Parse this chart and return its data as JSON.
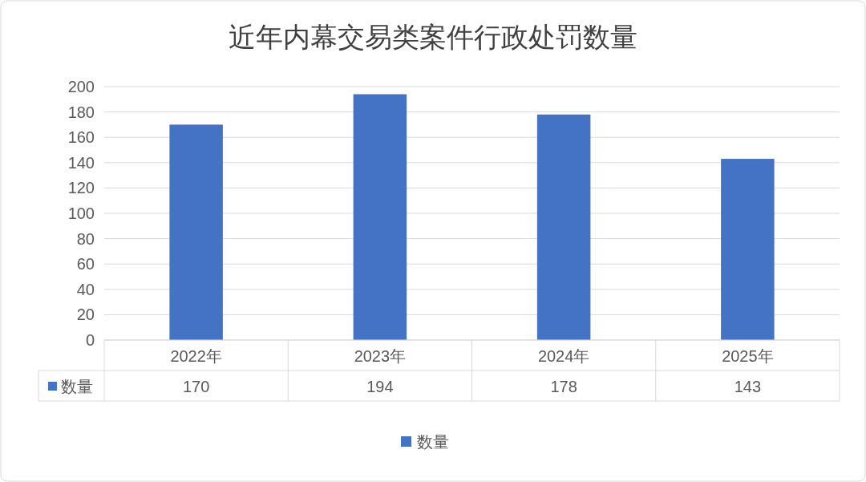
{
  "chart_data": {
    "type": "bar",
    "title": "近年内幕交易类案件行政处罚数量",
    "categories": [
      "2022年",
      "2023年",
      "2024年",
      "2025年"
    ],
    "series": [
      {
        "name": "数量",
        "color": "#4472c4",
        "values": [
          170,
          194,
          178,
          143
        ]
      }
    ],
    "ylim": [
      0,
      200
    ],
    "yticks": [
      0,
      20,
      40,
      60,
      80,
      100,
      120,
      140,
      160,
      180,
      200
    ],
    "grid": "y",
    "legend": "bottom",
    "data_labels": true
  }
}
